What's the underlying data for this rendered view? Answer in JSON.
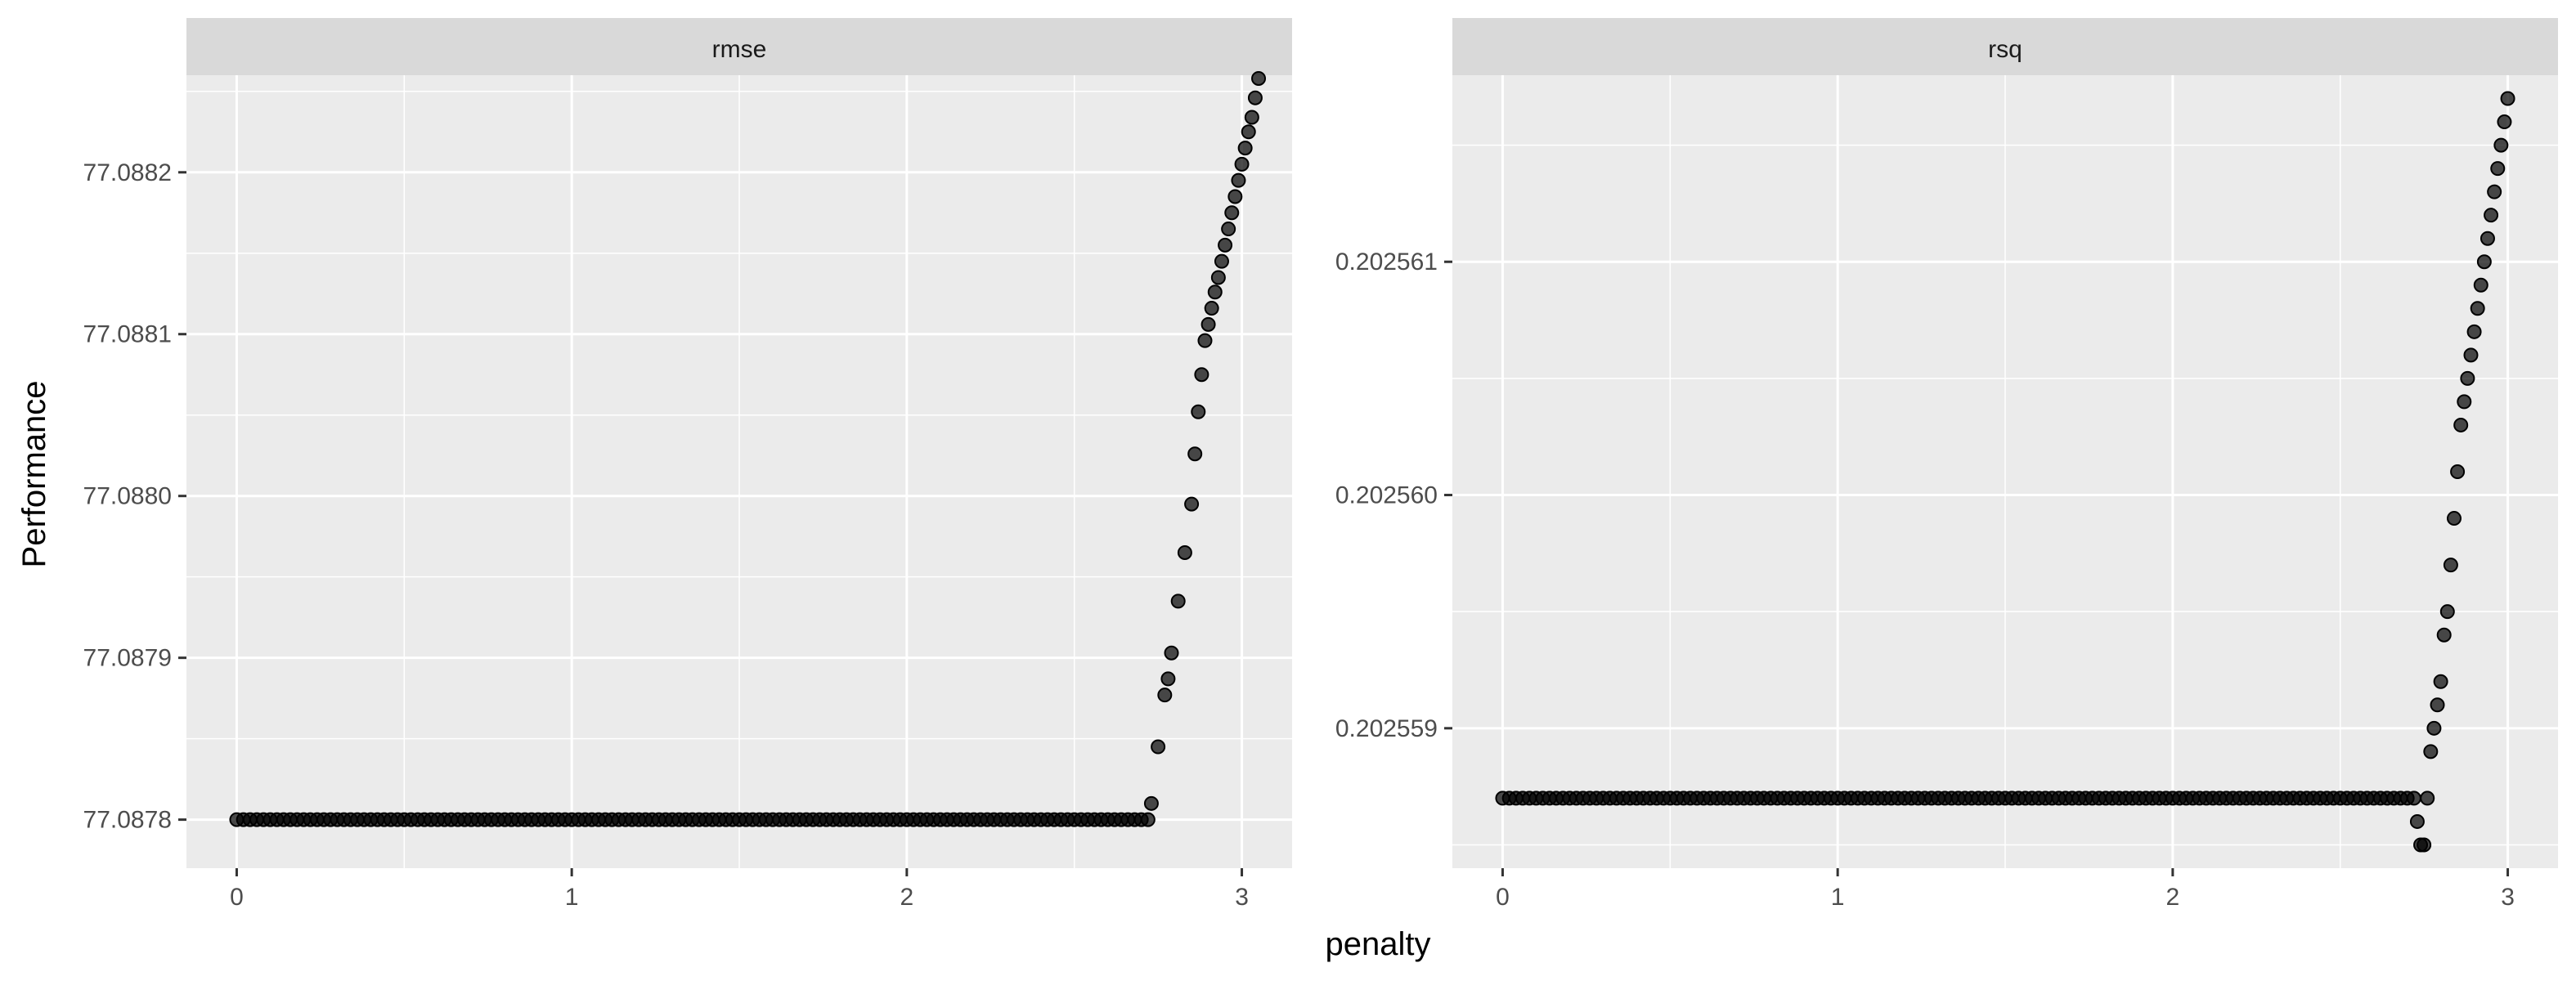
{
  "axes": {
    "xlabel": "penalty",
    "ylabel": "Performance"
  },
  "colors": {
    "panel": "#ebebeb",
    "strip": "#d9d9d9",
    "grid": "#ffffff",
    "point": "#000000",
    "point_opacity": 0.7
  },
  "chart_data": [
    {
      "type": "scatter",
      "panel": "rmse",
      "xlabel": "penalty",
      "ylabel": "Performance",
      "xlim": [
        -0.15,
        3.15
      ],
      "ylim": [
        77.08777,
        77.08826
      ],
      "xticks": [
        0,
        1,
        2,
        3
      ],
      "xtick_labels": [
        "0",
        "1",
        "2",
        "3"
      ],
      "yticks": [
        77.0878,
        77.0879,
        77.088,
        77.0881,
        77.0882
      ],
      "ytick_labels": [
        "77.0878",
        "77.0879",
        "77.0880",
        "77.0881",
        "77.0882"
      ],
      "flat": {
        "from": 0,
        "to": 2.72,
        "step": 0.02,
        "y": 77.0878
      },
      "points": [
        [
          2.73,
          77.08781
        ],
        [
          2.75,
          77.087845
        ],
        [
          2.77,
          77.087877
        ],
        [
          2.78,
          77.087887
        ],
        [
          2.79,
          77.087903
        ],
        [
          2.81,
          77.087935
        ],
        [
          2.83,
          77.087965
        ],
        [
          2.85,
          77.087995
        ],
        [
          2.86,
          77.088026
        ],
        [
          2.87,
          77.088052
        ],
        [
          2.88,
          77.088075
        ],
        [
          2.89,
          77.088096
        ],
        [
          2.9,
          77.088106
        ],
        [
          2.91,
          77.088116
        ],
        [
          2.92,
          77.088126
        ],
        [
          2.93,
          77.088135
        ],
        [
          2.94,
          77.088145
        ],
        [
          2.95,
          77.088155
        ],
        [
          2.96,
          77.088165
        ],
        [
          2.97,
          77.088175
        ],
        [
          2.98,
          77.088185
        ],
        [
          2.99,
          77.088195
        ],
        [
          3.0,
          77.088205
        ],
        [
          3.01,
          77.088215
        ],
        [
          3.02,
          77.088225
        ],
        [
          3.03,
          77.088234
        ],
        [
          3.04,
          77.088246
        ],
        [
          3.05,
          77.088258
        ]
      ]
    },
    {
      "type": "scatter",
      "panel": "rsq",
      "xlabel": "penalty",
      "ylabel": "Performance",
      "xlim": [
        -0.15,
        3.15
      ],
      "ylim": [
        0.2025584,
        0.2025618
      ],
      "xticks": [
        0,
        1,
        2,
        3
      ],
      "xtick_labels": [
        "0",
        "1",
        "2",
        "3"
      ],
      "yticks": [
        0.202559,
        0.20256,
        0.202561
      ],
      "ytick_labels": [
        "0.202559",
        "0.202560",
        "0.202561"
      ],
      "flat": {
        "from": 0,
        "to": 2.72,
        "step": 0.02,
        "y": 0.2025587
      },
      "points": [
        [
          2.73,
          0.2025586
        ],
        [
          2.74,
          0.2025585
        ],
        [
          2.75,
          0.2025585
        ],
        [
          2.76,
          0.2025587
        ],
        [
          2.77,
          0.2025589
        ],
        [
          2.78,
          0.202559
        ],
        [
          2.79,
          0.2025591
        ],
        [
          2.8,
          0.2025592
        ],
        [
          2.81,
          0.2025594
        ],
        [
          2.82,
          0.2025595
        ],
        [
          2.83,
          0.2025597
        ],
        [
          2.84,
          0.2025599
        ],
        [
          2.85,
          0.2025601
        ],
        [
          2.86,
          0.2025603
        ],
        [
          2.87,
          0.2025604
        ],
        [
          2.88,
          0.2025605
        ],
        [
          2.89,
          0.2025606
        ],
        [
          2.9,
          0.2025607
        ],
        [
          2.91,
          0.2025608
        ],
        [
          2.92,
          0.2025609
        ],
        [
          2.93,
          0.202561
        ],
        [
          2.94,
          0.2025611
        ],
        [
          2.95,
          0.2025612
        ],
        [
          2.96,
          0.2025613
        ],
        [
          2.97,
          0.2025614
        ],
        [
          2.98,
          0.2025615
        ],
        [
          2.99,
          0.2025616
        ],
        [
          3.0,
          0.2025617
        ]
      ]
    }
  ]
}
